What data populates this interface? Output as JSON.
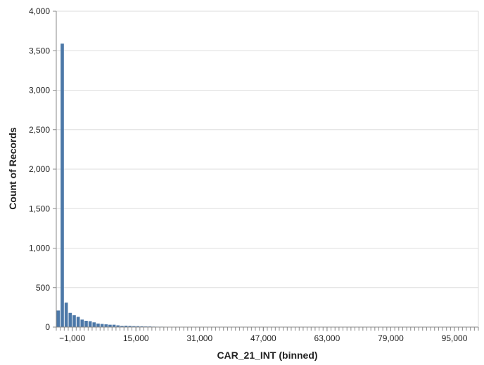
{
  "chart_data": {
    "type": "bar",
    "title": "",
    "xlabel": "CAR_21_INT (binned)",
    "ylabel": "Count of Records",
    "x_bin_start": -5000,
    "x_bin_step": 1000,
    "xlim": [
      -5000,
      101000
    ],
    "ylim": [
      0,
      4000
    ],
    "x_tick_values": [
      -1000,
      15000,
      31000,
      47000,
      63000,
      79000,
      95000
    ],
    "x_tick_labels": [
      "−1,000",
      "15,000",
      "31,000",
      "47,000",
      "63,000",
      "79,000",
      "95,000"
    ],
    "y_tick_values": [
      0,
      500,
      1000,
      1500,
      2000,
      2500,
      3000,
      3500,
      4000
    ],
    "y_tick_labels": [
      "0",
      "500",
      "1,000",
      "1,500",
      "2,000",
      "2,500",
      "3,000",
      "3,500",
      "4,000"
    ],
    "values": [
      210,
      3590,
      310,
      180,
      150,
      130,
      95,
      80,
      75,
      60,
      45,
      40,
      35,
      30,
      30,
      22,
      15,
      18,
      15,
      12,
      12,
      10,
      8,
      8,
      6,
      5,
      5,
      4,
      4,
      3,
      3,
      3,
      2,
      2,
      2,
      2,
      2,
      1,
      1,
      1,
      1,
      1,
      1,
      1,
      1,
      1,
      1,
      0,
      1,
      0
    ],
    "bar_color": "#4c78a8",
    "grid": true
  }
}
